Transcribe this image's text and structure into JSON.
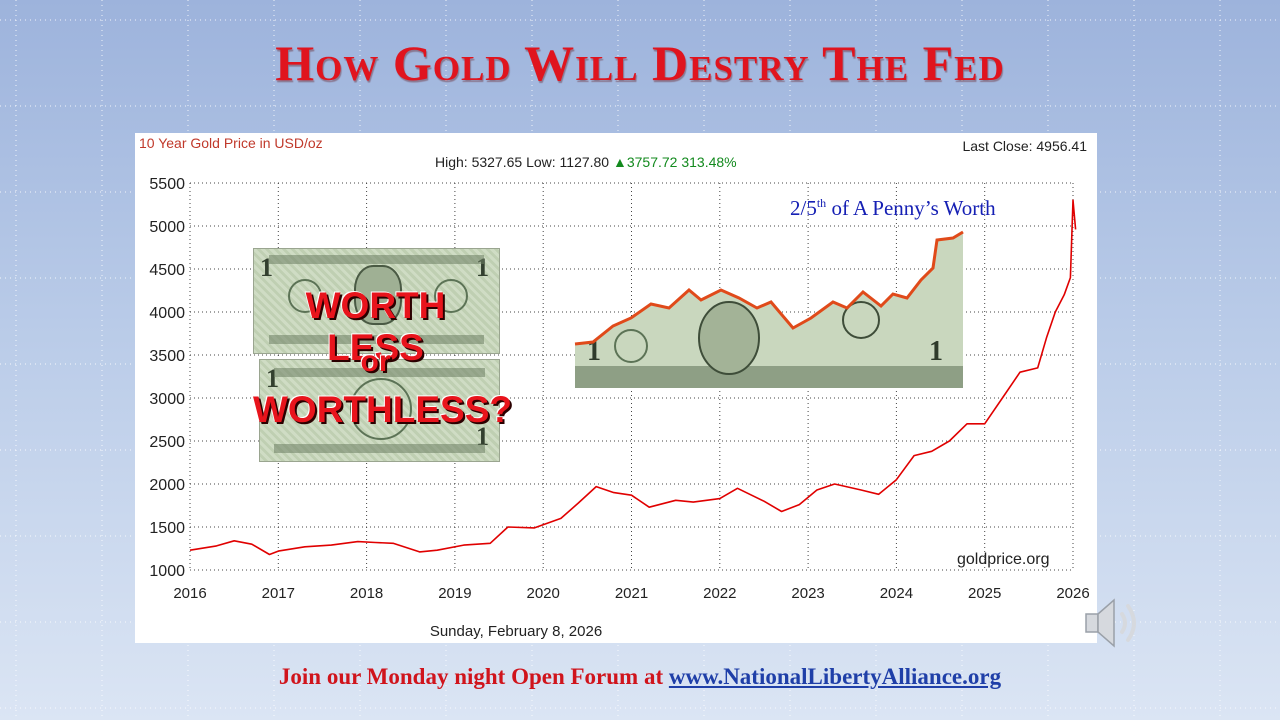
{
  "slide": {
    "title": "How Gold Will Destry The Fed",
    "footer_text": "Join our Monday night Open Forum at ",
    "footer_link": "www.NationalLibertyAlliance.org"
  },
  "images": {
    "meme_text_top": "WORTH LESS",
    "meme_text_mid": "or",
    "meme_text_bottom": "WORTHLESS?",
    "annotation": "2/5",
    "annotation_sup": "th",
    "annotation_rest": " of A Penny’s Worth"
  },
  "icons": {
    "speaker": "speaker-icon"
  },
  "chart_data": {
    "type": "line",
    "title": "10 Year Gold Price in USD/oz",
    "last_close": "Last Close: 4956.41",
    "stats_prefix": "High: 5327.65 Low: 1127.80 ",
    "stats_arrow": "▲",
    "stats_change": "3757.72 313.48%",
    "source": "goldprice.org",
    "date": "Sunday, February 8, 2026",
    "line_color": "#e00000",
    "x_ticks": [
      "2016",
      "2017",
      "2018",
      "2019",
      "2020",
      "2021",
      "2022",
      "2023",
      "2024",
      "2025",
      "2026"
    ],
    "y_ticks": [
      "1000",
      "1500",
      "2000",
      "2500",
      "3000",
      "3500",
      "4000",
      "4500",
      "5000",
      "5500"
    ],
    "xlim": [
      2016,
      2026
    ],
    "ylim": [
      1000,
      5500
    ],
    "grid": "dotted",
    "series": [
      {
        "x": [
          2016.0,
          2016.3,
          2016.5,
          2016.7,
          2016.9,
          2017.0,
          2017.3,
          2017.6,
          2017.9,
          2018.1,
          2018.3,
          2018.6,
          2018.8,
          2019.1,
          2019.4,
          2019.6,
          2019.9,
          2020.2,
          2020.4,
          2020.6,
          2020.8,
          2021.0,
          2021.2,
          2021.5,
          2021.7,
          2022.0,
          2022.2,
          2022.5,
          2022.7,
          2022.9,
          2023.1,
          2023.3,
          2023.6,
          2023.8,
          2024.0,
          2024.2,
          2024.4,
          2024.6,
          2024.8,
          2025.0,
          2025.2,
          2025.4,
          2025.6,
          2025.7,
          2025.8,
          2025.9,
          2025.97,
          2026.0,
          2026.03
        ],
        "y": [
          1230,
          1280,
          1340,
          1300,
          1180,
          1220,
          1270,
          1290,
          1330,
          1320,
          1310,
          1210,
          1230,
          1290,
          1310,
          1500,
          1490,
          1600,
          1780,
          1970,
          1900,
          1870,
          1730,
          1810,
          1790,
          1830,
          1950,
          1800,
          1680,
          1760,
          1930,
          2000,
          1930,
          1880,
          2050,
          2330,
          2380,
          2500,
          2700,
          2700,
          3000,
          3300,
          3350,
          3700,
          4000,
          4200,
          4400,
          5300,
          4960
        ]
      }
    ]
  }
}
